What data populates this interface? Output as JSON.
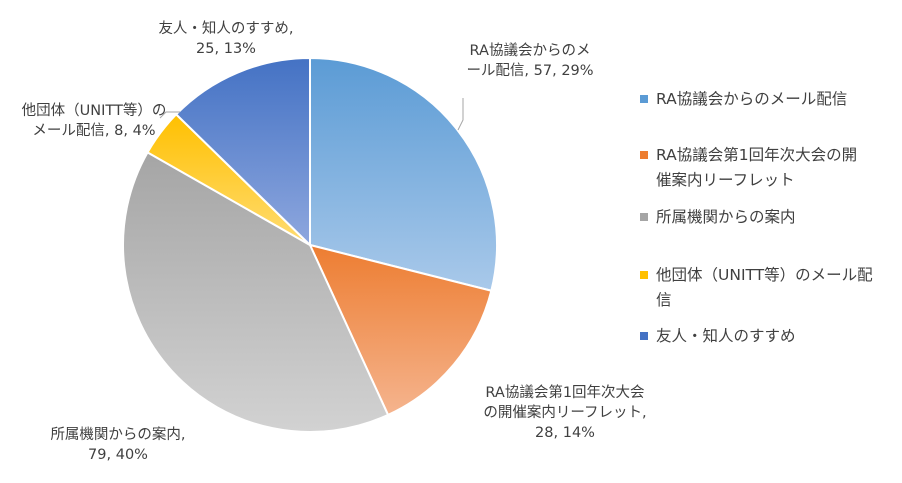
{
  "chart_data": {
    "type": "pie",
    "title": "",
    "categories": [
      "RA協議会からのメール配信",
      "RA協議会第1回年次大会の開催案内リーフレット",
      "所属機関からの案内",
      "他団体（UNITT等）のメール配信",
      "友人・知人のすすめ"
    ],
    "values": [
      57,
      28,
      79,
      8,
      25
    ],
    "percent": [
      29,
      14,
      40,
      4,
      13
    ],
    "data_labels": [
      [
        "RA協議会からのメ",
        "ール配信, 57, 29%"
      ],
      [
        "RA協議会第1回年次大会",
        "の開催案内リーフレット,",
        "28, 14%"
      ],
      [
        "所属機関からの案内,",
        "79, 40%"
      ],
      [
        "他団体（UNITT等）の",
        "メール配信, 8, 4%"
      ],
      [
        "友人・知人のすすめ,",
        "25, 13%"
      ]
    ],
    "legend": {
      "position": "right",
      "entries": [
        [
          "RA協議会からのメール配信"
        ],
        [
          "RA協議会第1回年次大会の開",
          "催案内リーフレット"
        ],
        [
          "所属機関からの案内"
        ],
        [
          "他団体（UNITT等）のメール配",
          "信"
        ],
        [
          "友人・知人のすすめ"
        ]
      ]
    },
    "colors": [
      [
        "#5b9bd5",
        "#a9c9ea"
      ],
      [
        "#ed7d31",
        "#f5b48e"
      ],
      [
        "#a5a5a5",
        "#d2d2d2"
      ],
      [
        "#ffc000",
        "#ffdc73"
      ],
      [
        "#4472c4",
        "#8ea7de"
      ]
    ],
    "legend_colors": [
      "#5b9bd5",
      "#ed7d31",
      "#a5a5a5",
      "#ffc000",
      "#4472c4"
    ]
  }
}
